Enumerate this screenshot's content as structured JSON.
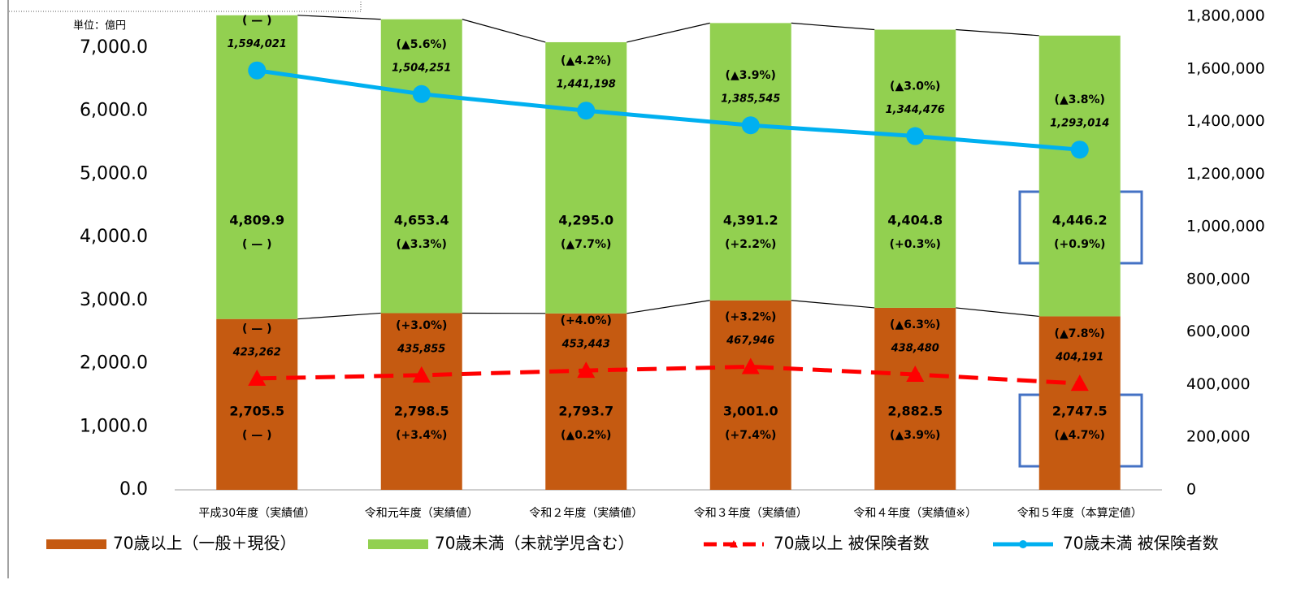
{
  "chart_data": {
    "type": "bar",
    "unit_label": "単位：億円",
    "categories": [
      "平成30年度（実績値）",
      "令和元年度（実績値）",
      "令和２年度（実績値）",
      "令和３年度（実績値）",
      "令和４年度（実績値※）",
      "令和５年度（本算定値）"
    ],
    "series": [
      {
        "name": "70歳以上（一般＋現役）",
        "type": "bar",
        "color": "#c55a11",
        "values": [
          2705.5,
          2798.5,
          2793.7,
          3001.0,
          2882.5,
          2747.5
        ],
        "value_labels": [
          "2,705.5",
          "2,798.5",
          "2,793.7",
          "3,001.0",
          "2,882.5",
          "2,747.5"
        ],
        "changes": [
          "( — )",
          "(+3.4%)",
          "(▲0.2%)",
          "(+7.4%)",
          "(▲3.9%)",
          "(▲4.7%)"
        ]
      },
      {
        "name": "70歳未満（未就学児含む）",
        "type": "bar",
        "color": "#92d050",
        "values": [
          4809.9,
          4653.4,
          4295.0,
          4391.2,
          4404.8,
          4446.2
        ],
        "value_labels": [
          "4,809.9",
          "4,653.4",
          "4,295.0",
          "4,391.2",
          "4,404.8",
          "4,446.2"
        ],
        "changes": [
          "( — )",
          "(▲3.3%)",
          "(▲7.7%)",
          "(+2.2%)",
          "(+0.3%)",
          "(+0.9%)"
        ]
      },
      {
        "name": "70歳以上 被保険者数",
        "type": "line",
        "axis": "y2",
        "color": "#ff0000",
        "dashed": true,
        "marker": "triangle",
        "values": [
          423262,
          435855,
          453443,
          467946,
          438480,
          404191
        ],
        "value_labels": [
          "423,262",
          "435,855",
          "453,443",
          "467,946",
          "438,480",
          "404,191"
        ],
        "changes": [
          "( — )",
          "(+3.0%)",
          "(+4.0%)",
          "(+3.2%)",
          "(▲6.3%)",
          "(▲7.8%)"
        ]
      },
      {
        "name": "70歳未満 被保険者数",
        "type": "line",
        "axis": "y2",
        "color": "#00b0f0",
        "dashed": false,
        "marker": "circle",
        "values": [
          1594021,
          1504251,
          1441198,
          1385545,
          1344476,
          1293014
        ],
        "value_labels": [
          "1,594,021",
          "1,504,251",
          "1,441,198",
          "1,385,545",
          "1,344,476",
          "1,293,014"
        ],
        "changes": [
          "( — )",
          "(▲5.6%)",
          "(▲4.2%)",
          "(▲3.9%)",
          "(▲3.0%)",
          "(▲3.8%)"
        ]
      }
    ],
    "ylim": [
      0,
      7500
    ],
    "yticks": [
      {
        "value": 0,
        "label": "0.0"
      },
      {
        "value": 1000,
        "label": "1,000.0"
      },
      {
        "value": 2000,
        "label": "2,000.0"
      },
      {
        "value": 3000,
        "label": "3,000.0"
      },
      {
        "value": 4000,
        "label": "4,000.0"
      },
      {
        "value": 5000,
        "label": "5,000.0"
      },
      {
        "value": 6000,
        "label": "6,000.0"
      },
      {
        "value": 7000,
        "label": "7,000.0"
      }
    ],
    "y2lim": [
      0,
      1800000
    ],
    "y2ticks": [
      0,
      {
        "value": 200000,
        "label": "200,000"
      },
      {
        "value": 400000,
        "label": "400,000"
      },
      {
        "value": 600000,
        "label": "600,000"
      },
      {
        "value": 800000,
        "label": "800,000"
      },
      {
        "value": 1000000,
        "label": "1,000,000"
      },
      {
        "value": 1200000,
        "label": "1,200,000"
      },
      {
        "value": 1400000,
        "label": "1,400,000"
      },
      {
        "value": 1600000,
        "label": "1,600,000"
      },
      {
        "value": 1800000,
        "label": "1,800,000"
      }
    ],
    "grid": false
  }
}
